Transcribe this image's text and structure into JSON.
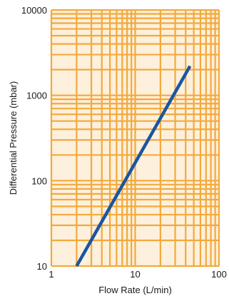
{
  "chart_data": {
    "type": "line",
    "title": "",
    "xlabel": "Flow Rate (L/min)",
    "ylabel": "Differential Pressure (mbar)",
    "x_scale": "log",
    "y_scale": "log",
    "xlim": [
      1,
      100
    ],
    "ylim": [
      10,
      10000
    ],
    "x_ticks": [
      {
        "value": 1,
        "label": "1"
      },
      {
        "value": 10,
        "label": "10"
      },
      {
        "value": 100,
        "label": "100"
      }
    ],
    "y_ticks": [
      {
        "value": 10,
        "label": "10"
      },
      {
        "value": 100,
        "label": "100"
      },
      {
        "value": 1000,
        "label": "1000"
      },
      {
        "value": 10000,
        "label": "10000"
      }
    ],
    "grid": true,
    "legend": "none",
    "series": [
      {
        "x": [
          2.0,
          45.0
        ],
        "y": [
          10,
          2200
        ],
        "color": "#1a56a0"
      }
    ],
    "colors": {
      "plot_background": "#fdf0dc",
      "gridline": "#f3a93c",
      "series_line": "#1a56a0"
    }
  }
}
